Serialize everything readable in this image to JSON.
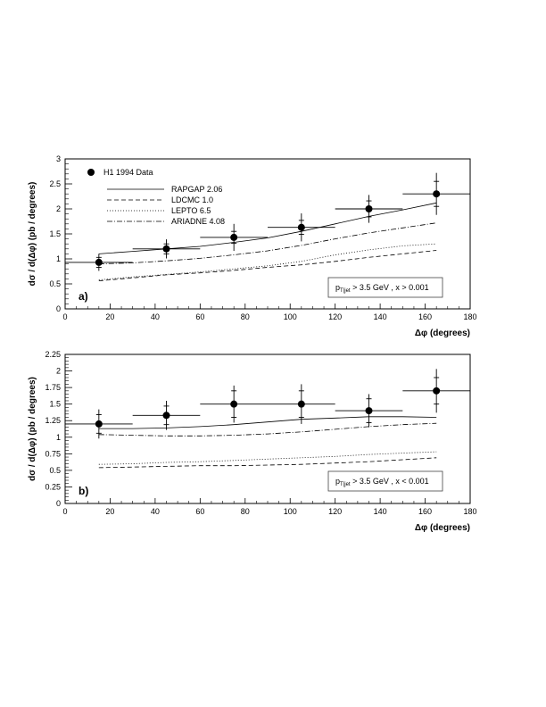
{
  "chart_data": [
    {
      "type": "line",
      "panel_label": "a)",
      "ylabel": "dσ / d(Δφ)   (pb / degrees)",
      "xlabel": "Δφ   (degrees)",
      "xlim": [
        0,
        180
      ],
      "ylim": [
        0,
        3
      ],
      "x_ticks": [
        0,
        20,
        40,
        60,
        80,
        100,
        120,
        140,
        160,
        180
      ],
      "y_ticks": [
        0,
        0.5,
        1,
        1.5,
        2,
        2.5,
        3
      ],
      "y_tick_labels": [
        "0",
        "0.5",
        "1",
        "1.5",
        "2",
        "2.5",
        "3"
      ],
      "cut_text": "p",
      "cut_sub": "T|jet",
      "cut_rest": " > 3.5 GeV ,  x > 0.001",
      "legend_data_label": "H1 1994 Data",
      "data": {
        "name": "H1 1994 Data",
        "x": [
          15,
          45,
          75,
          105,
          135,
          165
        ],
        "y": [
          0.93,
          1.2,
          1.43,
          1.63,
          2.0,
          2.3
        ],
        "x_err": [
          15,
          15,
          15,
          15,
          15,
          15
        ],
        "y_err_stat": [
          0.1,
          0.1,
          0.12,
          0.14,
          0.16,
          0.25
        ],
        "y_err_tot": [
          0.17,
          0.19,
          0.27,
          0.28,
          0.28,
          0.42
        ]
      },
      "series": [
        {
          "name": "RAPGAP 2.06",
          "style": "solid",
          "x": [
            15,
            30,
            45,
            60,
            75,
            90,
            105,
            120,
            135,
            150,
            165
          ],
          "y": [
            1.1,
            1.15,
            1.2,
            1.25,
            1.33,
            1.42,
            1.55,
            1.7,
            1.85,
            1.98,
            2.12
          ]
        },
        {
          "name": "LDCMC 1.0",
          "style": "dashed",
          "x": [
            15,
            30,
            45,
            60,
            75,
            90,
            105,
            120,
            135,
            150,
            165
          ],
          "y": [
            0.56,
            0.62,
            0.68,
            0.72,
            0.77,
            0.83,
            0.88,
            0.95,
            1.03,
            1.1,
            1.17
          ]
        },
        {
          "name": "LEPTO 6.5",
          "style": "dotted",
          "x": [
            15,
            30,
            45,
            60,
            75,
            90,
            105,
            120,
            135,
            150,
            165
          ],
          "y": [
            0.58,
            0.64,
            0.69,
            0.74,
            0.8,
            0.86,
            0.95,
            1.08,
            1.18,
            1.26,
            1.3
          ]
        },
        {
          "name": "ARIADNE 4.08",
          "style": "dashdot",
          "x": [
            15,
            30,
            45,
            60,
            75,
            90,
            105,
            120,
            135,
            150,
            165
          ],
          "y": [
            0.9,
            0.92,
            0.96,
            1.01,
            1.08,
            1.16,
            1.27,
            1.4,
            1.52,
            1.62,
            1.72
          ]
        }
      ]
    },
    {
      "type": "line",
      "panel_label": "b)",
      "ylabel": "dσ / d(Δφ)   (pb / degrees)",
      "xlabel": "Δφ   (degrees)",
      "xlim": [
        0,
        180
      ],
      "ylim": [
        0,
        2.25
      ],
      "x_ticks": [
        0,
        20,
        40,
        60,
        80,
        100,
        120,
        140,
        160,
        180
      ],
      "y_ticks": [
        0,
        0.25,
        0.5,
        0.75,
        1,
        1.25,
        1.5,
        1.75,
        2,
        2.25
      ],
      "y_tick_labels": [
        "0",
        "0.25",
        "0.5",
        "0.75",
        "1",
        "1.25",
        "1.5",
        "1.75",
        "2",
        "2.25"
      ],
      "cut_text": "p",
      "cut_sub": "T|jet",
      "cut_rest": " > 3.5 GeV ,  x < 0.001",
      "data": {
        "name": "H1 1994 Data",
        "x": [
          15,
          45,
          75,
          105,
          135,
          165
        ],
        "y": [
          1.2,
          1.33,
          1.5,
          1.5,
          1.4,
          1.7
        ],
        "x_err": [
          15,
          15,
          15,
          15,
          15,
          15
        ],
        "y_err_stat": [
          0.14,
          0.14,
          0.2,
          0.2,
          0.18,
          0.2
        ],
        "y_err_tot": [
          0.22,
          0.22,
          0.28,
          0.3,
          0.25,
          0.33
        ]
      },
      "series": [
        {
          "name": "RAPGAP 2.06",
          "style": "solid",
          "x": [
            15,
            30,
            45,
            60,
            75,
            90,
            105,
            120,
            135,
            150,
            165
          ],
          "y": [
            1.13,
            1.13,
            1.14,
            1.16,
            1.19,
            1.23,
            1.27,
            1.29,
            1.31,
            1.31,
            1.3
          ]
        },
        {
          "name": "LDCMC 1.0",
          "style": "dashed",
          "x": [
            15,
            30,
            45,
            60,
            75,
            90,
            105,
            120,
            135,
            150,
            165
          ],
          "y": [
            0.54,
            0.55,
            0.56,
            0.57,
            0.57,
            0.58,
            0.59,
            0.61,
            0.63,
            0.66,
            0.69
          ]
        },
        {
          "name": "LEPTO 6.5",
          "style": "dotted",
          "x": [
            15,
            30,
            45,
            60,
            75,
            90,
            105,
            120,
            135,
            150,
            165
          ],
          "y": [
            0.59,
            0.6,
            0.62,
            0.63,
            0.65,
            0.67,
            0.69,
            0.71,
            0.74,
            0.76,
            0.78
          ]
        },
        {
          "name": "ARIADNE 4.08",
          "style": "dashdot",
          "x": [
            15,
            30,
            45,
            60,
            75,
            90,
            105,
            120,
            135,
            150,
            165
          ],
          "y": [
            1.04,
            1.03,
            1.02,
            1.02,
            1.03,
            1.05,
            1.08,
            1.12,
            1.16,
            1.19,
            1.21
          ]
        }
      ]
    }
  ],
  "colors": {
    "ink": "#000000",
    "background": "#ffffff"
  }
}
